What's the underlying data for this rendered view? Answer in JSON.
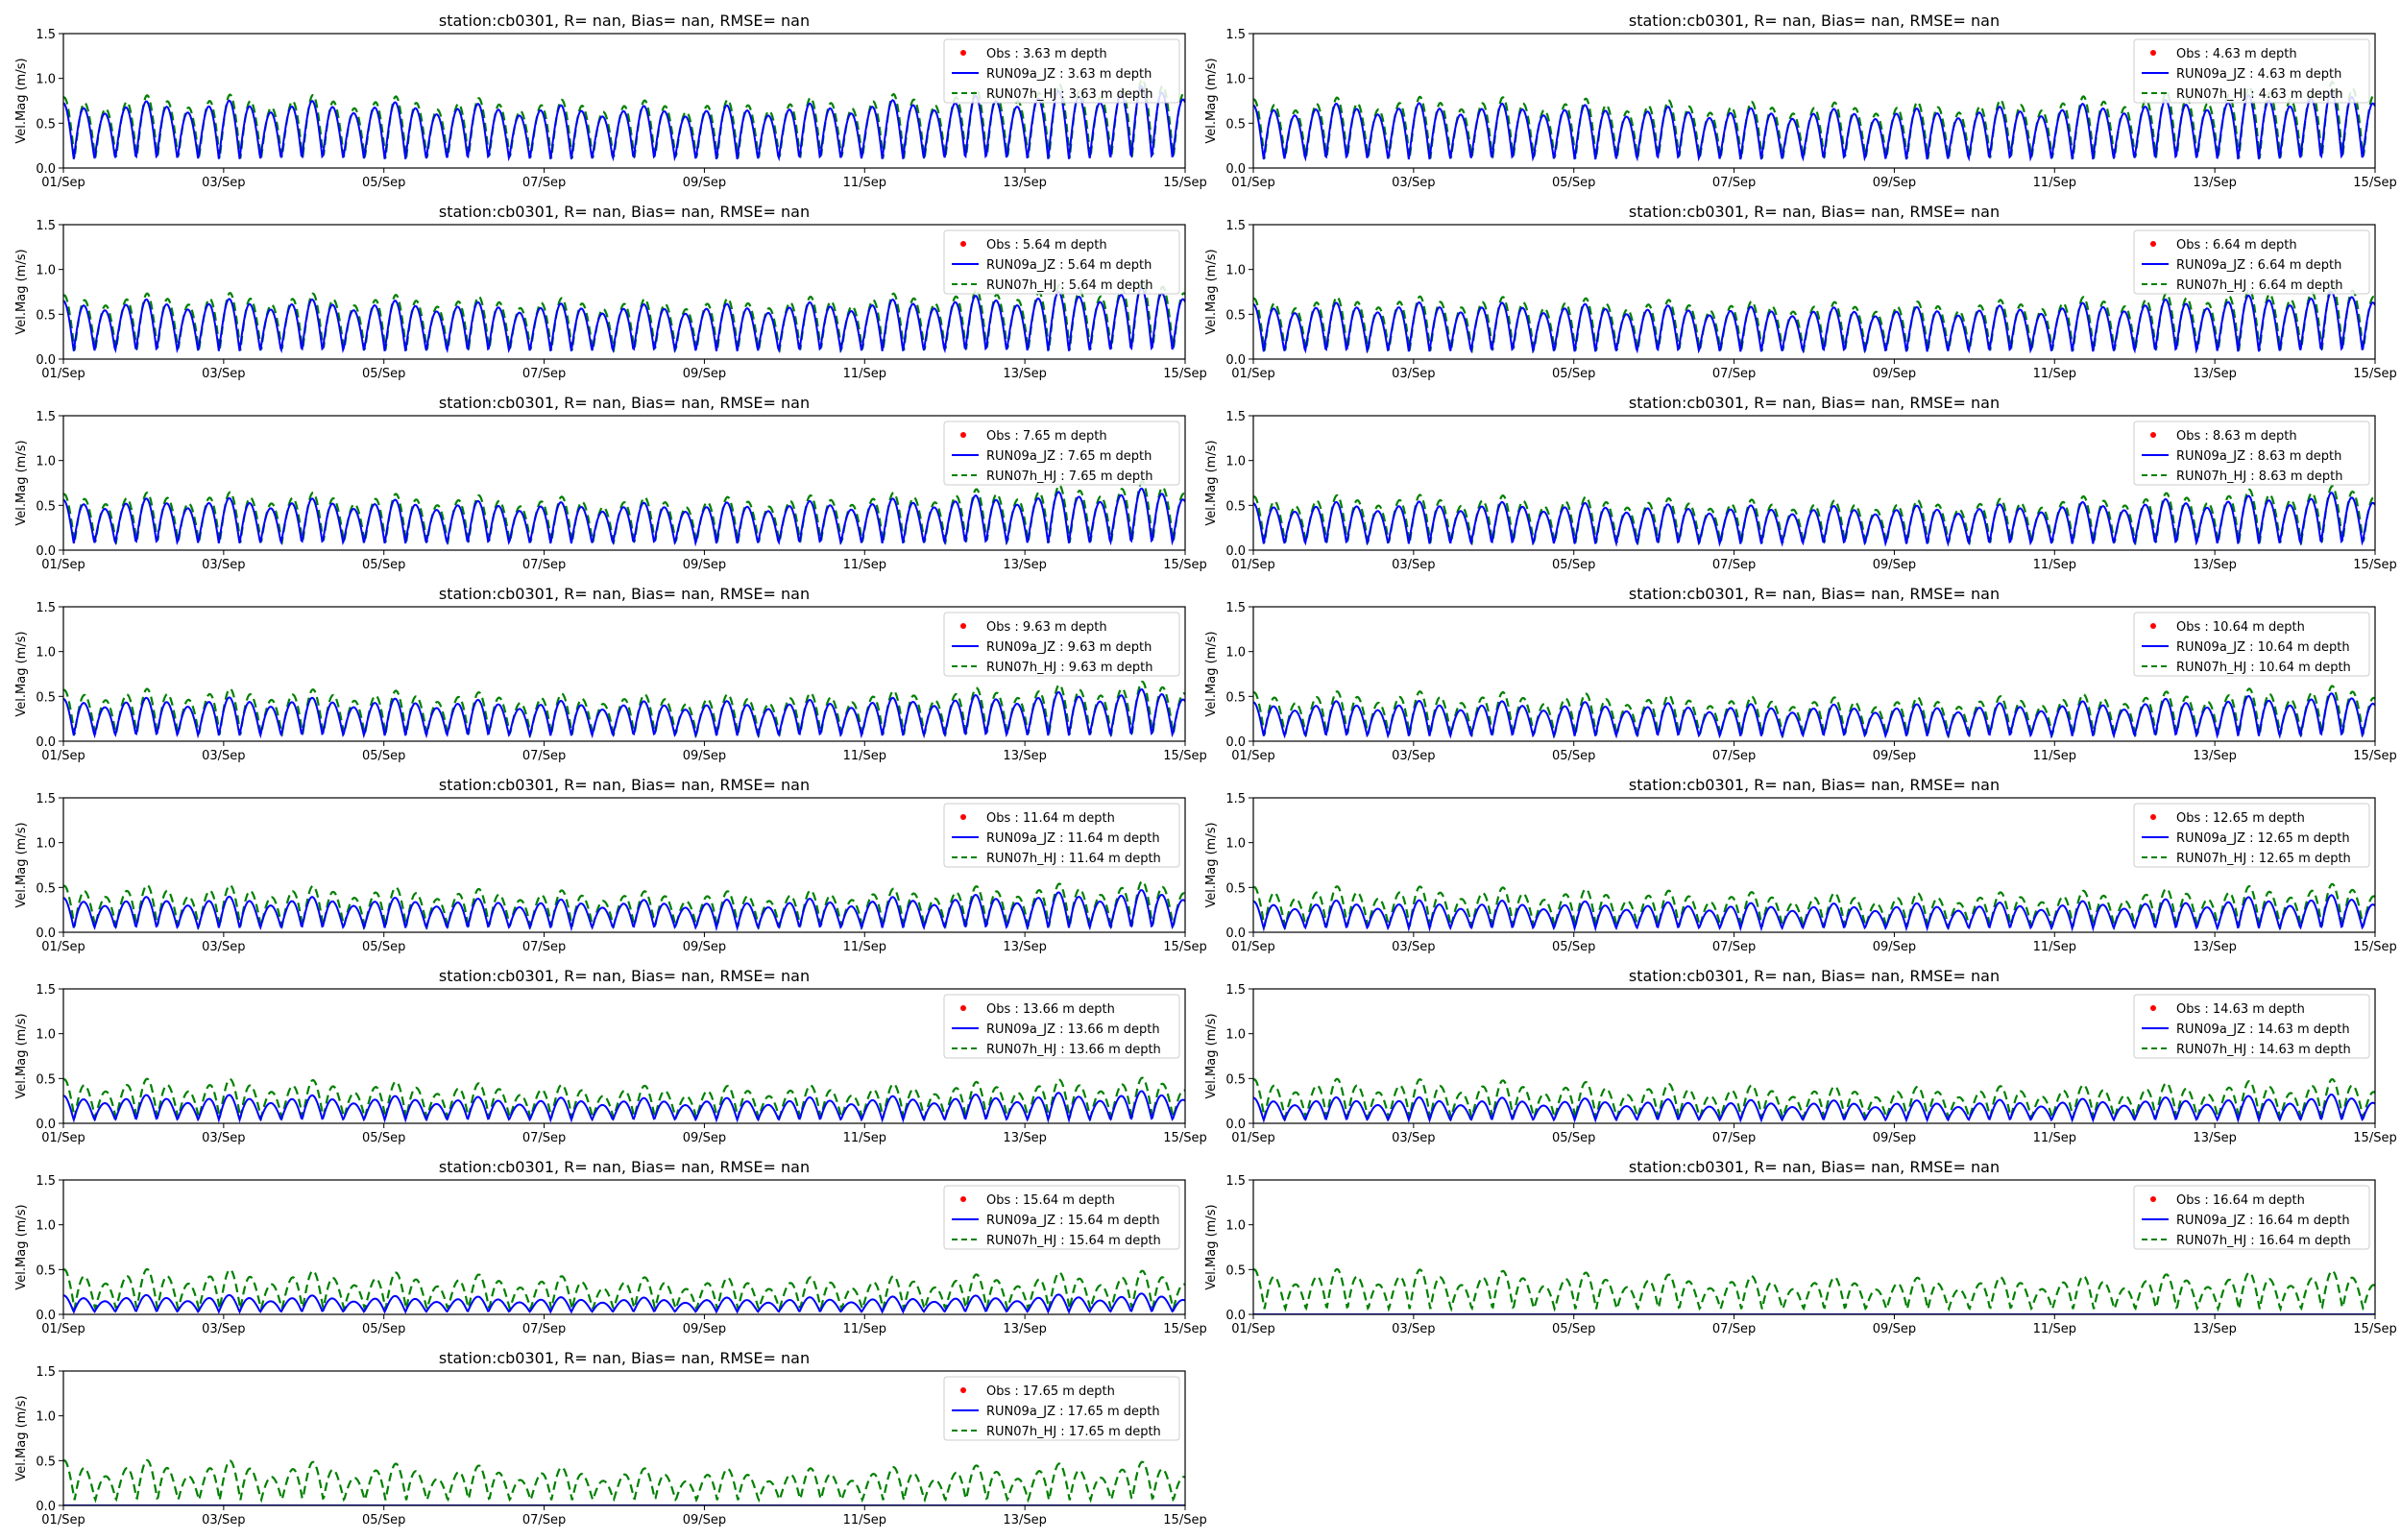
{
  "figure": {
    "x_tick_labels": [
      "01/Sep",
      "03/Sep",
      "05/Sep",
      "07/Sep",
      "09/Sep",
      "11/Sep",
      "13/Sep",
      "15/Sep"
    ],
    "y_tick_labels": [
      "0.0",
      "0.5",
      "1.0",
      "1.5"
    ],
    "ylabel": "Vel.Mag (m/s)",
    "colors": {
      "obs": "#ff0000",
      "run09a": "#0000ff",
      "run07h": "#008000"
    }
  },
  "chart_data": [
    {
      "type": "line",
      "title": "station:cb0301, R=   nan, Bias=    nan, RMSE=    nan",
      "depth": "3.63",
      "ylabel": "Vel.Mag (m/s)",
      "xlim": [
        "01/Sep",
        "15/Sep"
      ],
      "ylim": [
        0,
        1.5
      ],
      "grid": false,
      "legend_position": "top-right",
      "legend": [
        "Obs : 3.63 m depth",
        "RUN09a_JZ : 3.63 m depth",
        "RUN07h_HJ : 3.63 m depth"
      ],
      "series": [
        {
          "name": "Obs : 3.63 m depth",
          "style": "points",
          "values": []
        },
        {
          "name": "RUN09a_JZ : 3.63 m depth",
          "style": "solid",
          "mean": 0.38,
          "amp": 0.2,
          "growth": 0.09,
          "diurnal": 0.2,
          "values": "semidiurnal tidal signal, peaks ~0.5-1.0 m/s"
        },
        {
          "name": "RUN07h_HJ : 3.63 m depth",
          "style": "dashed",
          "mean": 0.42,
          "amp": 0.21,
          "growth": 0.09,
          "diurnal": 0.2,
          "values": "semidiurnal tidal signal, peaks ~0.55-1.05 m/s"
        }
      ]
    },
    {
      "type": "line",
      "title": "station:cb0301, R=   nan, Bias=    nan, RMSE=    nan",
      "depth": "4.63",
      "ylabel": "Vel.Mag (m/s)",
      "xlim": [
        "01/Sep",
        "15/Sep"
      ],
      "ylim": [
        0,
        1.5
      ],
      "grid": false,
      "legend_position": "top-right",
      "legend": [
        "Obs : 4.63 m depth",
        "RUN09a_JZ : 4.63 m depth",
        "RUN07h_HJ : 4.63 m depth"
      ],
      "series": [
        {
          "name": "Obs : 4.63 m depth",
          "style": "points",
          "values": []
        },
        {
          "name": "RUN09a_JZ : 4.63 m depth",
          "style": "solid",
          "mean": 0.37,
          "amp": 0.19,
          "growth": 0.08,
          "diurnal": 0.2
        },
        {
          "name": "RUN07h_HJ : 4.63 m depth",
          "style": "dashed",
          "mean": 0.41,
          "amp": 0.2,
          "growth": 0.09,
          "diurnal": 0.2
        }
      ]
    },
    {
      "type": "line",
      "title": "station:cb0301, R=   nan, Bias=    nan, RMSE=    nan",
      "depth": "5.64",
      "ylabel": "Vel.Mag (m/s)",
      "xlim": [
        "01/Sep",
        "15/Sep"
      ],
      "ylim": [
        0,
        1.5
      ],
      "grid": false,
      "legend_position": "top-right",
      "legend": [
        "Obs : 5.64 m depth",
        "RUN09a_JZ : 5.64 m depth",
        "RUN07h_HJ : 5.64 m depth"
      ],
      "series": [
        {
          "name": "Obs : 5.64 m depth",
          "style": "points",
          "values": []
        },
        {
          "name": "RUN09a_JZ : 5.64 m depth",
          "style": "solid",
          "mean": 0.34,
          "amp": 0.18,
          "growth": 0.08,
          "diurnal": 0.2
        },
        {
          "name": "RUN07h_HJ : 5.64 m depth",
          "style": "dashed",
          "mean": 0.38,
          "amp": 0.19,
          "growth": 0.08,
          "diurnal": 0.2
        }
      ]
    },
    {
      "type": "line",
      "title": "station:cb0301, R=   nan, Bias=    nan, RMSE=    nan",
      "depth": "6.64",
      "ylabel": "Vel.Mag (m/s)",
      "xlim": [
        "01/Sep",
        "15/Sep"
      ],
      "ylim": [
        0,
        1.5
      ],
      "grid": false,
      "legend_position": "top-right",
      "legend": [
        "Obs : 6.64 m depth",
        "RUN09a_JZ : 6.64 m depth",
        "RUN07h_HJ : 6.64 m depth"
      ],
      "series": [
        {
          "name": "Obs : 6.64 m depth",
          "style": "points",
          "values": []
        },
        {
          "name": "RUN09a_JZ : 6.64 m depth",
          "style": "solid",
          "mean": 0.32,
          "amp": 0.17,
          "growth": 0.08,
          "diurnal": 0.2
        },
        {
          "name": "RUN07h_HJ : 6.64 m depth",
          "style": "dashed",
          "mean": 0.36,
          "amp": 0.18,
          "growth": 0.08,
          "diurnal": 0.2
        }
      ]
    },
    {
      "type": "line",
      "title": "station:cb0301, R=   nan, Bias=    nan, RMSE=    nan",
      "depth": "7.65",
      "ylabel": "Vel.Mag (m/s)",
      "xlim": [
        "01/Sep",
        "15/Sep"
      ],
      "ylim": [
        0,
        1.5
      ],
      "grid": false,
      "legend_position": "top-right",
      "legend": [
        "Obs : 7.65 m depth",
        "RUN09a_JZ : 7.65 m depth",
        "RUN07h_HJ : 7.65 m depth"
      ],
      "series": [
        {
          "name": "Obs : 7.65 m depth",
          "style": "points",
          "values": []
        },
        {
          "name": "RUN09a_JZ : 7.65 m depth",
          "style": "solid",
          "mean": 0.29,
          "amp": 0.16,
          "growth": 0.08,
          "diurnal": 0.22
        },
        {
          "name": "RUN07h_HJ : 7.65 m depth",
          "style": "dashed",
          "mean": 0.33,
          "amp": 0.17,
          "growth": 0.08,
          "diurnal": 0.22
        }
      ]
    },
    {
      "type": "line",
      "title": "station:cb0301, R=   nan, Bias=    nan, RMSE=    nan",
      "depth": "8.63",
      "ylabel": "Vel.Mag (m/s)",
      "xlim": [
        "01/Sep",
        "15/Sep"
      ],
      "ylim": [
        0,
        1.5
      ],
      "grid": false,
      "legend_position": "top-right",
      "legend": [
        "Obs : 8.63 m depth",
        "RUN09a_JZ : 8.63 m depth",
        "RUN07h_HJ : 8.63 m depth"
      ],
      "series": [
        {
          "name": "Obs : 8.63 m depth",
          "style": "points",
          "values": []
        },
        {
          "name": "RUN09a_JZ : 8.63 m depth",
          "style": "solid",
          "mean": 0.27,
          "amp": 0.15,
          "growth": 0.08,
          "diurnal": 0.22
        },
        {
          "name": "RUN07h_HJ : 8.63 m depth",
          "style": "dashed",
          "mean": 0.31,
          "amp": 0.17,
          "growth": 0.07,
          "diurnal": 0.22
        }
      ]
    },
    {
      "type": "line",
      "title": "station:cb0301, R=   nan, Bias=    nan, RMSE=    nan",
      "depth": "9.63",
      "ylabel": "Vel.Mag (m/s)",
      "xlim": [
        "01/Sep",
        "15/Sep"
      ],
      "ylim": [
        0,
        1.5
      ],
      "grid": false,
      "legend_position": "top-right",
      "legend": [
        "Obs : 9.63 m depth",
        "RUN09a_JZ : 9.63 m depth",
        "RUN07h_HJ : 9.63 m depth"
      ],
      "series": [
        {
          "name": "Obs : 9.63 m depth",
          "style": "points",
          "values": []
        },
        {
          "name": "RUN09a_JZ : 9.63 m depth",
          "style": "solid",
          "mean": 0.24,
          "amp": 0.14,
          "growth": 0.08,
          "diurnal": 0.24
        },
        {
          "name": "RUN07h_HJ : 9.63 m depth",
          "style": "dashed",
          "mean": 0.29,
          "amp": 0.17,
          "growth": 0.06,
          "diurnal": 0.24
        }
      ]
    },
    {
      "type": "line",
      "title": "station:cb0301, R=   nan, Bias=    nan, RMSE=    nan",
      "depth": "10.64",
      "ylabel": "Vel.Mag (m/s)",
      "xlim": [
        "01/Sep",
        "15/Sep"
      ],
      "ylim": [
        0,
        1.5
      ],
      "grid": false,
      "legend_position": "top-right",
      "legend": [
        "Obs : 10.64 m depth",
        "RUN09a_JZ : 10.64 m depth",
        "RUN07h_HJ : 10.64 m depth"
      ],
      "series": [
        {
          "name": "Obs : 10.64 m depth",
          "style": "points",
          "values": []
        },
        {
          "name": "RUN09a_JZ : 10.64 m depth",
          "style": "solid",
          "mean": 0.22,
          "amp": 0.13,
          "growth": 0.08,
          "diurnal": 0.26
        },
        {
          "name": "RUN07h_HJ : 10.64 m depth",
          "style": "dashed",
          "mean": 0.27,
          "amp": 0.17,
          "growth": 0.05,
          "diurnal": 0.26
        }
      ]
    },
    {
      "type": "line",
      "title": "station:cb0301, R=   nan, Bias=    nan, RMSE=    nan",
      "depth": "11.64",
      "ylabel": "Vel.Mag (m/s)",
      "xlim": [
        "01/Sep",
        "15/Sep"
      ],
      "ylim": [
        0,
        1.5
      ],
      "grid": false,
      "legend_position": "top-right",
      "legend": [
        "Obs : 11.64 m depth",
        "RUN09a_JZ : 11.64 m depth",
        "RUN07h_HJ : 11.64 m depth"
      ],
      "series": [
        {
          "name": "Obs : 11.64 m depth",
          "style": "points",
          "values": []
        },
        {
          "name": "RUN09a_JZ : 11.64 m depth",
          "style": "solid",
          "mean": 0.19,
          "amp": 0.12,
          "growth": 0.08,
          "diurnal": 0.28
        },
        {
          "name": "RUN07h_HJ : 11.64 m depth",
          "style": "dashed",
          "mean": 0.25,
          "amp": 0.17,
          "growth": 0.04,
          "diurnal": 0.28
        }
      ]
    },
    {
      "type": "line",
      "title": "station:cb0301, R=   nan, Bias=    nan, RMSE=    nan",
      "depth": "12.65",
      "ylabel": "Vel.Mag (m/s)",
      "xlim": [
        "01/Sep",
        "15/Sep"
      ],
      "ylim": [
        0,
        1.5
      ],
      "grid": false,
      "legend_position": "top-right",
      "legend": [
        "Obs : 12.65 m depth",
        "RUN09a_JZ : 12.65 m depth",
        "RUN07h_HJ : 12.65 m depth"
      ],
      "series": [
        {
          "name": "Obs : 12.65 m depth",
          "style": "points",
          "values": []
        },
        {
          "name": "RUN09a_JZ : 12.65 m depth",
          "style": "solid",
          "mean": 0.17,
          "amp": 0.11,
          "growth": 0.07,
          "diurnal": 0.3
        },
        {
          "name": "RUN07h_HJ : 12.65 m depth",
          "style": "dashed",
          "mean": 0.24,
          "amp": 0.17,
          "growth": 0.03,
          "diurnal": 0.3
        }
      ]
    },
    {
      "type": "line",
      "title": "station:cb0301, R=   nan, Bias=    nan, RMSE=    nan",
      "depth": "13.66",
      "ylabel": "Vel.Mag (m/s)",
      "xlim": [
        "01/Sep",
        "15/Sep"
      ],
      "ylim": [
        0,
        1.5
      ],
      "grid": false,
      "legend_position": "top-right",
      "legend": [
        "Obs : 13.66 m depth",
        "RUN09a_JZ : 13.66 m depth",
        "RUN07h_HJ : 13.66 m depth"
      ],
      "series": [
        {
          "name": "Obs : 13.66 m depth",
          "style": "points",
          "values": []
        },
        {
          "name": "RUN09a_JZ : 13.66 m depth",
          "style": "solid",
          "mean": 0.15,
          "amp": 0.1,
          "growth": 0.06,
          "diurnal": 0.32
        },
        {
          "name": "RUN07h_HJ : 13.66 m depth",
          "style": "dashed",
          "mean": 0.23,
          "amp": 0.17,
          "growth": 0.02,
          "diurnal": 0.32
        }
      ]
    },
    {
      "type": "line",
      "title": "station:cb0301, R=   nan, Bias=    nan, RMSE=    nan",
      "depth": "14.63",
      "ylabel": "Vel.Mag (m/s)",
      "xlim": [
        "01/Sep",
        "15/Sep"
      ],
      "ylim": [
        0,
        1.5
      ],
      "grid": false,
      "legend_position": "top-right",
      "legend": [
        "Obs : 14.63 m depth",
        "RUN09a_JZ : 14.63 m depth",
        "RUN07h_HJ : 14.63 m depth"
      ],
      "series": [
        {
          "name": "Obs : 14.63 m depth",
          "style": "points",
          "values": []
        },
        {
          "name": "RUN09a_JZ : 14.63 m depth",
          "style": "solid",
          "mean": 0.14,
          "amp": 0.09,
          "growth": 0.05,
          "diurnal": 0.34
        },
        {
          "name": "RUN07h_HJ : 14.63 m depth",
          "style": "dashed",
          "mean": 0.23,
          "amp": 0.17,
          "growth": 0.01,
          "diurnal": 0.34
        }
      ]
    },
    {
      "type": "line",
      "title": "station:cb0301, R=   nan, Bias=    nan, RMSE=    nan",
      "depth": "15.64",
      "ylabel": "Vel.Mag (m/s)",
      "xlim": [
        "01/Sep",
        "15/Sep"
      ],
      "ylim": [
        0,
        1.5
      ],
      "grid": false,
      "legend_position": "top-right",
      "legend": [
        "Obs : 15.64 m depth",
        "RUN09a_JZ : 15.64 m depth",
        "RUN07h_HJ : 15.64 m depth"
      ],
      "series": [
        {
          "name": "Obs : 15.64 m depth",
          "style": "points",
          "values": []
        },
        {
          "name": "RUN09a_JZ : 15.64 m depth",
          "style": "solid",
          "mean": 0.11,
          "amp": 0.06,
          "growth": 0.04,
          "diurnal": 0.36
        },
        {
          "name": "RUN07h_HJ : 15.64 m depth",
          "style": "dashed",
          "mean": 0.23,
          "amp": 0.18,
          "growth": 0.0,
          "diurnal": 0.36
        }
      ]
    },
    {
      "type": "line",
      "title": "station:cb0301, R=   nan, Bias=    nan, RMSE=    nan",
      "depth": "16.64",
      "ylabel": "Vel.Mag (m/s)",
      "xlim": [
        "01/Sep",
        "15/Sep"
      ],
      "ylim": [
        0,
        1.5
      ],
      "grid": false,
      "legend_position": "top-right",
      "legend": [
        "Obs : 16.64 m depth",
        "RUN09a_JZ : 16.64 m depth",
        "RUN07h_HJ : 16.64 m depth"
      ],
      "series": [
        {
          "name": "Obs : 16.64 m depth",
          "style": "points",
          "values": []
        },
        {
          "name": "RUN09a_JZ : 16.64 m depth",
          "style": "solid",
          "mean": 0.0,
          "amp": 0.0,
          "growth": 0.0,
          "diurnal": 0.0
        },
        {
          "name": "RUN07h_HJ : 16.64 m depth",
          "style": "dashed",
          "mean": 0.23,
          "amp": 0.18,
          "growth": 0.0,
          "diurnal": 0.38
        }
      ]
    },
    {
      "type": "line",
      "title": "station:cb0301, R=   nan, Bias=    nan, RMSE=    nan",
      "depth": "17.65",
      "ylabel": "Vel.Mag (m/s)",
      "xlim": [
        "01/Sep",
        "15/Sep"
      ],
      "ylim": [
        0,
        1.5
      ],
      "grid": false,
      "legend_position": "top-right",
      "legend": [
        "Obs : 17.65 m depth",
        "RUN09a_JZ : 17.65 m depth",
        "RUN07h_HJ : 17.65 m depth"
      ],
      "series": [
        {
          "name": "Obs : 17.65 m depth",
          "style": "points",
          "values": []
        },
        {
          "name": "RUN09a_JZ : 17.65 m depth",
          "style": "solid",
          "mean": 0.0,
          "amp": 0.0,
          "growth": 0.0,
          "diurnal": 0.0
        },
        {
          "name": "RUN07h_HJ : 17.65 m depth",
          "style": "dashed",
          "mean": 0.23,
          "amp": 0.18,
          "growth": 0.0,
          "diurnal": 0.4
        }
      ]
    }
  ]
}
